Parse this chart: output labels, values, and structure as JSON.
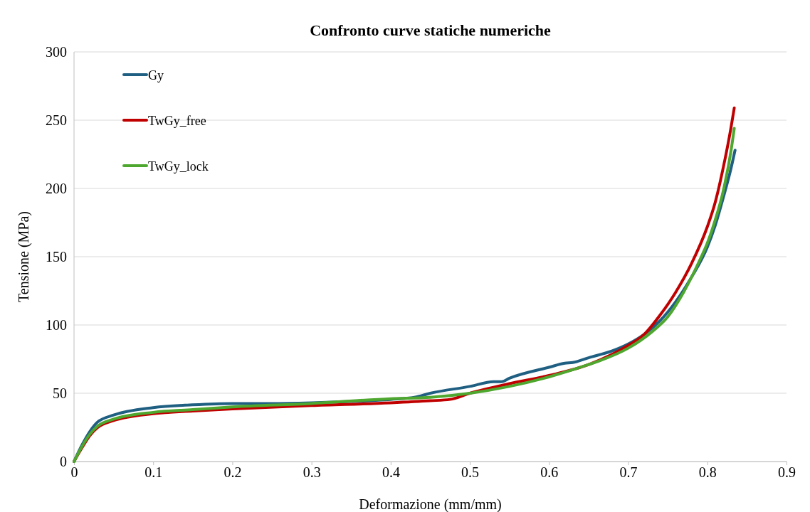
{
  "chart_data": {
    "type": "line",
    "title": "Confronto curve statiche numeriche",
    "xlabel": "Deformazione (mm/mm)",
    "ylabel": "Tensione (MPa)",
    "xlim": [
      0,
      0.9
    ],
    "xticks": [
      0,
      0.1,
      0.2,
      0.3,
      0.4,
      0.5,
      0.6,
      0.7,
      0.8,
      0.9
    ],
    "ylim": [
      0,
      300
    ],
    "yticks": [
      0,
      50,
      100,
      150,
      200,
      250,
      300
    ],
    "grid": "y",
    "legend": "top left",
    "marker": "none",
    "line_style": "solid",
    "series": [
      {
        "name": "Gy",
        "color": "#1f5f82",
        "x": [
          0,
          0.01,
          0.02,
          0.03,
          0.05,
          0.1,
          0.15,
          0.2,
          0.25,
          0.3,
          0.35,
          0.4,
          0.43,
          0.45,
          0.5,
          0.53,
          0.54,
          0.55,
          0.6,
          0.62,
          0.63,
          0.65,
          0.68,
          0.7,
          0.72,
          0.74,
          0.76,
          0.78,
          0.8,
          0.81,
          0.82,
          0.83,
          0.835
        ],
        "values": [
          0,
          12,
          22,
          29,
          34,
          39.5,
          41.5,
          42.5,
          42.5,
          43,
          44,
          45.5,
          47,
          50,
          55,
          58.5,
          58.5,
          61,
          69,
          72,
          72.5,
          76,
          81,
          86,
          93,
          103,
          117,
          135,
          157,
          173,
          193,
          215,
          228
        ]
      },
      {
        "name": "TwGy_free",
        "color": "#c00000",
        "x": [
          0,
          0.01,
          0.02,
          0.03,
          0.05,
          0.1,
          0.15,
          0.2,
          0.3,
          0.4,
          0.45,
          0.475,
          0.5,
          0.55,
          0.6,
          0.65,
          0.7,
          0.72,
          0.74,
          0.76,
          0.78,
          0.8,
          0.81,
          0.82,
          0.83,
          0.834
        ],
        "values": [
          0,
          10,
          19,
          25,
          30,
          35,
          37,
          38.5,
          41,
          43,
          44.5,
          45.5,
          50,
          57,
          63,
          71,
          85,
          93,
          107,
          124,
          145,
          172,
          190,
          215,
          245,
          259
        ]
      },
      {
        "name": "TwGy_lock",
        "color": "#4ea72e",
        "x": [
          0,
          0.01,
          0.02,
          0.03,
          0.05,
          0.1,
          0.15,
          0.2,
          0.3,
          0.4,
          0.45,
          0.5,
          0.55,
          0.6,
          0.65,
          0.665,
          0.7,
          0.73,
          0.75,
          0.77,
          0.79,
          0.8,
          0.81,
          0.82,
          0.83,
          0.834
        ],
        "values": [
          0,
          11,
          20,
          26,
          31,
          36,
          38,
          40,
          42.5,
          46,
          47,
          50,
          55,
          62,
          71,
          74,
          83,
          95,
          106,
          124,
          147,
          160,
          177,
          198,
          228,
          244
        ]
      }
    ]
  }
}
